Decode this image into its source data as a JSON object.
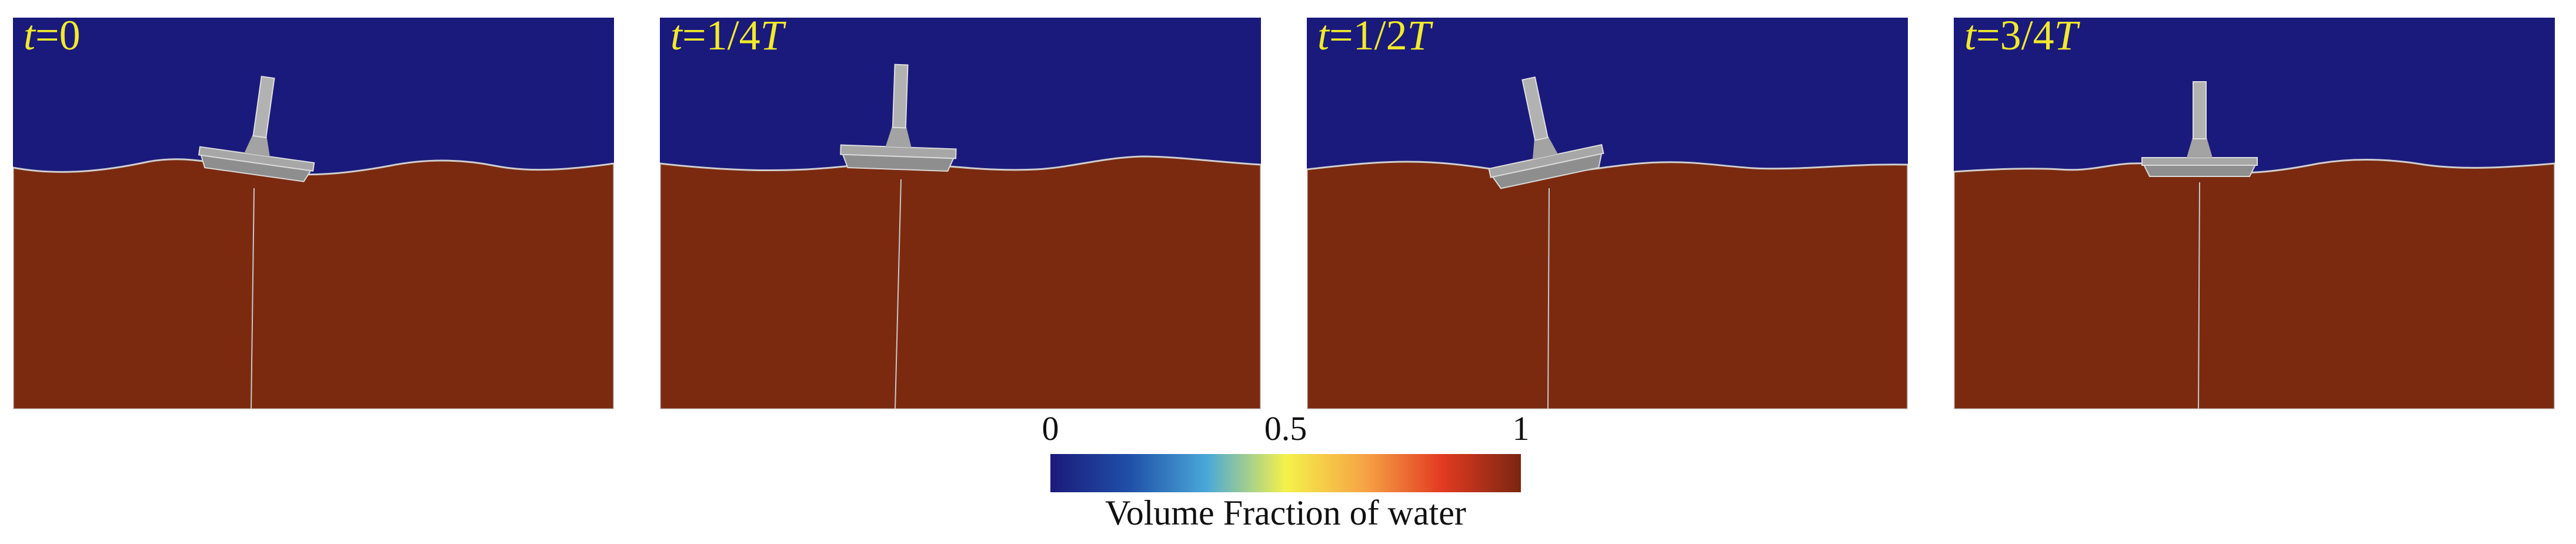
{
  "panels": [
    {
      "id": "t0",
      "var": "t",
      "text": "=0",
      "tilt_deg": 8
    },
    {
      "id": "t14",
      "var": "t",
      "text": "=1/4",
      "period": "T",
      "tilt_deg": 2
    },
    {
      "id": "t12",
      "var": "t",
      "text": "=1/2",
      "period": "T",
      "tilt_deg": -12
    },
    {
      "id": "t34",
      "var": "t",
      "text": "=3/4",
      "period": "T",
      "tilt_deg": 0
    }
  ],
  "colorbar": {
    "ticks": [
      "0",
      "0.5",
      "1"
    ],
    "label": "Volume Fraction of water",
    "colors": [
      "#1b1a7a",
      "#1f4fa8",
      "#4aa8d8",
      "#f4f24a",
      "#f6a445",
      "#e23a22",
      "#7b2610"
    ]
  },
  "colors": {
    "air": "#1a1a7c",
    "water": "#7b2a10",
    "label": "#f2ea2a",
    "platform": "#9c9c9c"
  }
}
